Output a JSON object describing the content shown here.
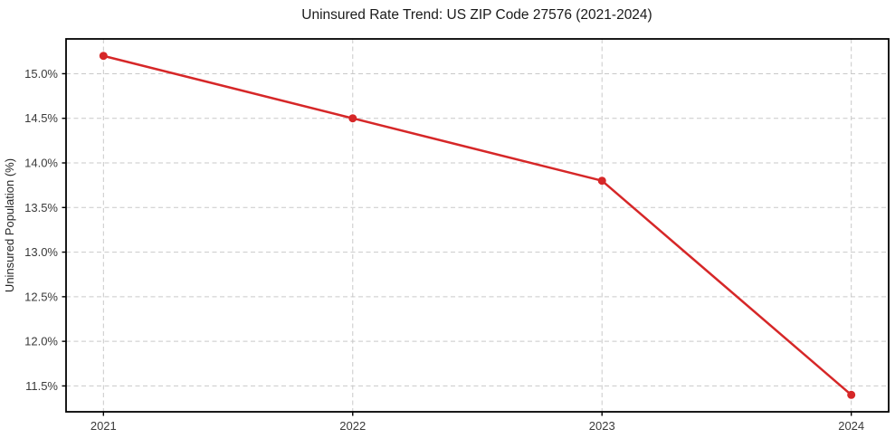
{
  "chart_data": {
    "type": "line",
    "title": "Uninsured Rate Trend: US ZIP Code 27576 (2021-2024)",
    "xlabel": "",
    "ylabel": "Uninsured Population (%)",
    "x": [
      2021,
      2022,
      2023,
      2024
    ],
    "x_tick_labels": [
      "2021",
      "2022",
      "2023",
      "2024"
    ],
    "series": [
      {
        "values": [
          15.2,
          14.5,
          13.8,
          11.4
        ]
      }
    ],
    "y_tick_values": [
      11.5,
      12.0,
      12.5,
      13.0,
      13.5,
      14.0,
      14.5,
      15.0
    ],
    "y_tick_labels": [
      "11.5%",
      "12.0%",
      "12.5%",
      "13.0%",
      "13.5%",
      "14.0%",
      "14.5%",
      "15.0%"
    ],
    "xlim": [
      2020.85,
      2024.15
    ],
    "ylim": [
      11.21,
      15.39
    ],
    "grid": "dashed-both-axes",
    "legend_position": "none",
    "colors": {
      "line": "#d62728",
      "marker": "#d62728",
      "grid": "#c9c9c9",
      "spine": "#000000",
      "background": "#ffffff"
    },
    "marker_style": "circle",
    "line_width": 2.5,
    "marker_radius": 4.5
  }
}
